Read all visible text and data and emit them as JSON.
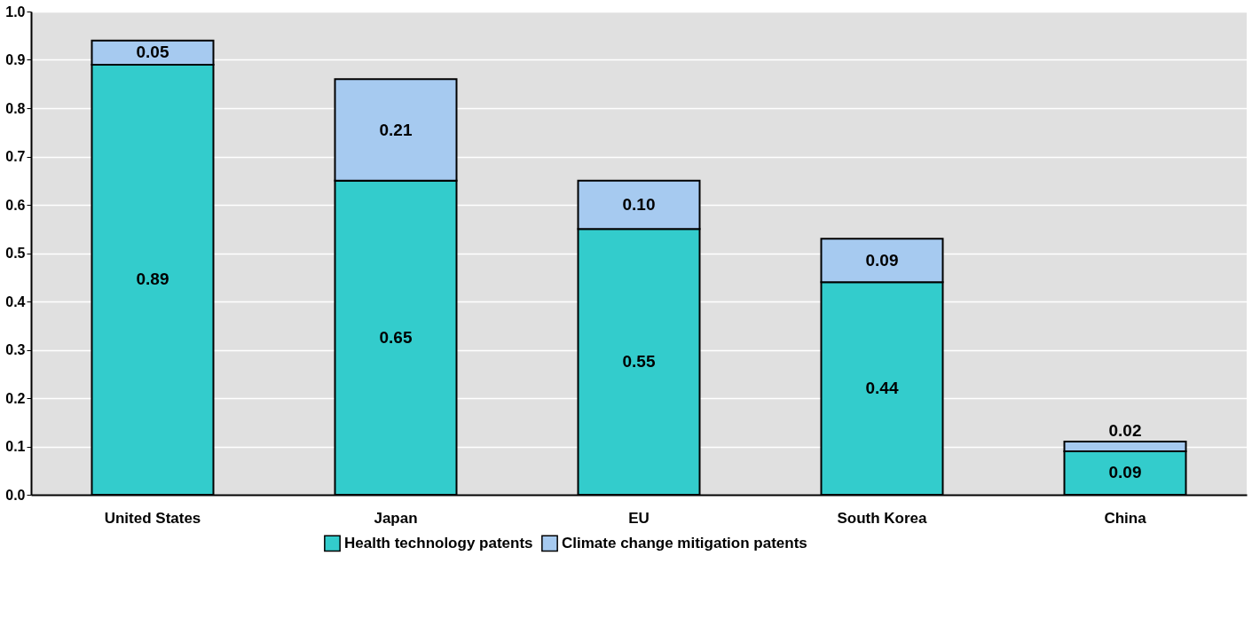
{
  "chart_data": {
    "type": "bar",
    "stacked": true,
    "categories": [
      "United States",
      "Japan",
      "EU",
      "South Korea",
      "China"
    ],
    "series": [
      {
        "name": "Health technology patents",
        "color": "#33cccc",
        "values": [
          0.89,
          0.65,
          0.55,
          0.44,
          0.09
        ],
        "value_labels": [
          "0.89",
          "0.65",
          "0.55",
          "0.44",
          "0.09"
        ]
      },
      {
        "name": "Climate change mitigation patents",
        "color": "#a6caf0",
        "values": [
          0.05,
          0.21,
          0.1,
          0.09,
          0.02
        ],
        "value_labels": [
          "0.05",
          "0.21",
          "0.10",
          "0.09",
          "0.02"
        ]
      }
    ],
    "ylim": [
      0,
      1.0
    ],
    "yticks": [
      {
        "value": 0,
        "label": "0.0"
      },
      {
        "value": 0.1,
        "label": "0.1"
      },
      {
        "value": 0.2,
        "label": "0.2"
      },
      {
        "value": 0.3,
        "label": "0.3"
      },
      {
        "value": 0.4,
        "label": "0.4"
      },
      {
        "value": 0.5,
        "label": "0.5"
      },
      {
        "value": 0.6,
        "label": "0.6"
      },
      {
        "value": 0.7,
        "label": "0.7"
      },
      {
        "value": 0.8,
        "label": "0.8"
      },
      {
        "value": 0.9,
        "label": "0.9"
      },
      {
        "value": 1.0,
        "label": "1.0"
      }
    ],
    "grid": "y",
    "legend": "bottom"
  }
}
